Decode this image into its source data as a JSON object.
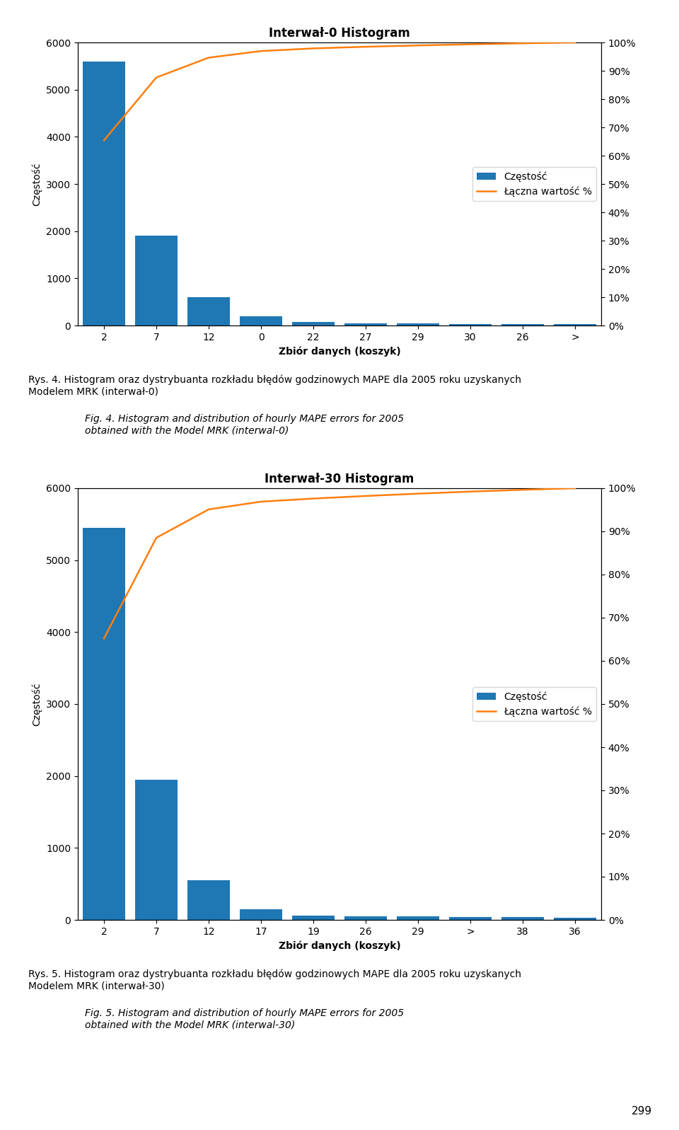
{
  "chart_data": [
    {
      "type": "bar",
      "title": "Interwał-0 Histogram",
      "categories": [
        "2",
        "7",
        "12",
        "0",
        "22",
        "27",
        "29",
        "30",
        "26",
        ">"
      ],
      "xlabel": "Zbiór danych (koszyk)",
      "ylabel": "Częstość",
      "ylim": [
        0,
        6000
      ],
      "yticks": [
        0,
        1000,
        2000,
        3000,
        4000,
        5000,
        6000
      ],
      "y2lim": [
        0,
        100
      ],
      "y2ticks": [
        {
          "value": 0,
          "label": "0%"
        },
        {
          "value": 10,
          "label": "10%"
        },
        {
          "value": 20,
          "label": "20%"
        },
        {
          "value": 30,
          "label": "30%"
        },
        {
          "value": 40,
          "label": "40%"
        },
        {
          "value": 50,
          "label": "50%"
        },
        {
          "value": 60,
          "label": "60%"
        },
        {
          "value": 70,
          "label": "70%"
        },
        {
          "value": 80,
          "label": "80%"
        },
        {
          "value": 90,
          "label": "90%"
        },
        {
          "value": 100,
          "label": "100%"
        }
      ],
      "series": [
        {
          "name": "Częstość",
          "type": "bar",
          "values": [
            5600,
            1900,
            600,
            200,
            80,
            50,
            40,
            35,
            30,
            25
          ]
        },
        {
          "name": "Łączna wartość %",
          "type": "line",
          "axis": "y2",
          "values": [
            65.4206,
            87.6168,
            94.6262,
            96.9626,
            97.8972,
            98.4813,
            98.9486,
            99.3575,
            99.7079,
            100
          ]
        }
      ],
      "legend": "center right",
      "grid": false,
      "annotations": [
        "Rys. 4. Histogram oraz dystrybuanta rozkładu błędów godzinowych MAPE dla 2005 roku uzyskanych\nModelem MRK (interwał-0)",
        "Fig. 4. Histogram and distribution of hourly MAPE errors for 2005\nobtained with the Model MRK (interwal-0)"
      ]
    },
    {
      "type": "bar",
      "title": "Interwał-30 Histogram",
      "categories": [
        "2",
        "7",
        "12",
        "17",
        "19",
        "26",
        "29",
        ">",
        "38",
        "36"
      ],
      "xlabel": "Zbiór danych (koszyk)",
      "ylabel": "Częstość",
      "ylim": [
        0,
        6000
      ],
      "yticks": [
        0,
        1000,
        2000,
        3000,
        4000,
        5000,
        6000
      ],
      "y2lim": [
        0,
        100
      ],
      "y2ticks": [
        {
          "value": 0,
          "label": "0%"
        },
        {
          "value": 10,
          "label": "10%"
        },
        {
          "value": 20,
          "label": "20%"
        },
        {
          "value": 30,
          "label": "30%"
        },
        {
          "value": 40,
          "label": "40%"
        },
        {
          "value": 50,
          "label": "50%"
        },
        {
          "value": 60,
          "label": "60%"
        },
        {
          "value": 70,
          "label": "70%"
        },
        {
          "value": 80,
          "label": "80%"
        },
        {
          "value": 90,
          "label": "90%"
        },
        {
          "value": 100,
          "label": "100%"
        }
      ],
      "series": [
        {
          "name": "Częstość",
          "type": "bar",
          "values": [
            5450,
            1950,
            550,
            150,
            60,
            50,
            45,
            40,
            35,
            30
          ]
        },
        {
          "name": "Łączna wartość %",
          "type": "line",
          "axis": "y2",
          "values": [
            65.1914,
            88.5167,
            95.0957,
            96.89,
            97.6077,
            98.2057,
            98.744,
            99.2225,
            99.6411,
            100
          ]
        }
      ],
      "legend": "center right",
      "grid": false,
      "annotations": [
        "Rys. 5. Histogram oraz dystrybuanta rozkładu błędów godzinowych MAPE dla 2005 roku uzyskanych\nModelem MRK (interwał-30)",
        "Fig. 5. Histogram and distribution of hourly MAPE errors for 2005\nobtained with the Model MRK (interwal-30)"
      ]
    }
  ],
  "annotations": [
    "299"
  ]
}
